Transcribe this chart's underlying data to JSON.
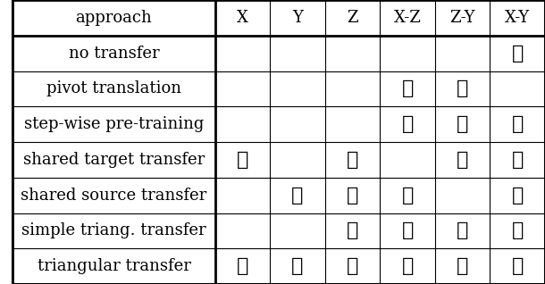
{
  "columns": [
    "approach",
    "X",
    "Y",
    "Z",
    "X-Z",
    "Z-Y",
    "X-Y"
  ],
  "rows": [
    "no transfer",
    "pivot translation",
    "step-wise pre-training",
    "shared target transfer",
    "shared source transfer",
    "simple triang. transfer",
    "triangular transfer"
  ],
  "checkmarks": [
    [
      0,
      0,
      0,
      0,
      0,
      1
    ],
    [
      0,
      0,
      0,
      1,
      1,
      0
    ],
    [
      0,
      0,
      0,
      1,
      1,
      1
    ],
    [
      1,
      0,
      1,
      0,
      1,
      1
    ],
    [
      0,
      1,
      1,
      1,
      0,
      1
    ],
    [
      0,
      0,
      1,
      1,
      1,
      1
    ],
    [
      1,
      1,
      1,
      1,
      1,
      1
    ]
  ],
  "background_color": "#ffffff",
  "text_color": "#000000",
  "header_fontsize": 13,
  "row_fontsize": 13,
  "check_fontsize": 16,
  "figsize": [
    6.1,
    3.18
  ],
  "dpi": 100
}
